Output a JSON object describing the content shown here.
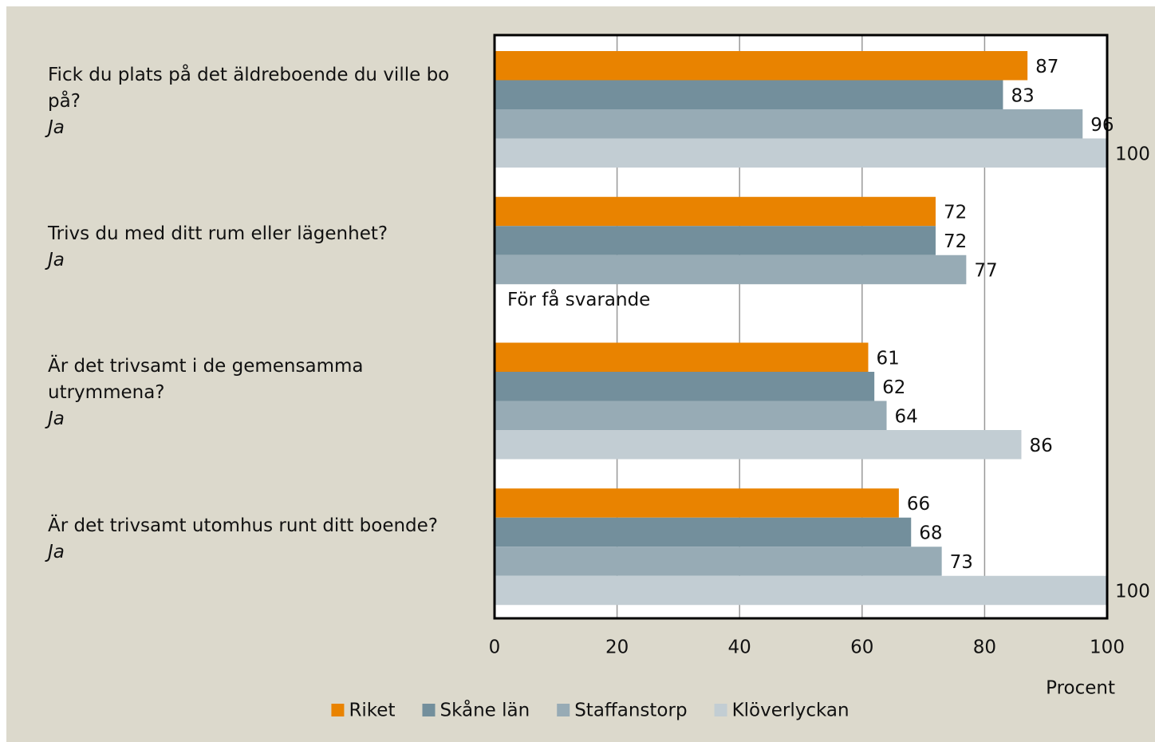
{
  "chart_data": {
    "type": "barh",
    "categories": [
      "Fick du plats på det äldreboende du ville bo på?",
      "Trivs du med ditt rum eller lägenhet?",
      "Är det trivsamt i de gemensamma utrymmena?",
      "Är det trivsamt utomhus runt ditt boende?"
    ],
    "category_sublabels": [
      "Ja",
      "Ja",
      "Ja",
      "Ja"
    ],
    "series": [
      {
        "name": "Riket",
        "color": "#e98300",
        "values": [
          87,
          72,
          61,
          66
        ]
      },
      {
        "name": "Skåne län",
        "color": "#738f9c",
        "values": [
          83,
          72,
          62,
          68
        ]
      },
      {
        "name": "Staffanstorp",
        "color": "#97abb5",
        "values": [
          96,
          77,
          64,
          73
        ]
      },
      {
        "name": "Klöverlyckan",
        "color": "#c2cdd3",
        "values": [
          100,
          null,
          86,
          100
        ]
      }
    ],
    "annotation": "För få svarande",
    "xlabel": "Procent",
    "xlim": [
      0,
      100
    ],
    "xticks": [
      0,
      20,
      40,
      60,
      80,
      100
    ],
    "grid": true,
    "legend": "bottom"
  }
}
